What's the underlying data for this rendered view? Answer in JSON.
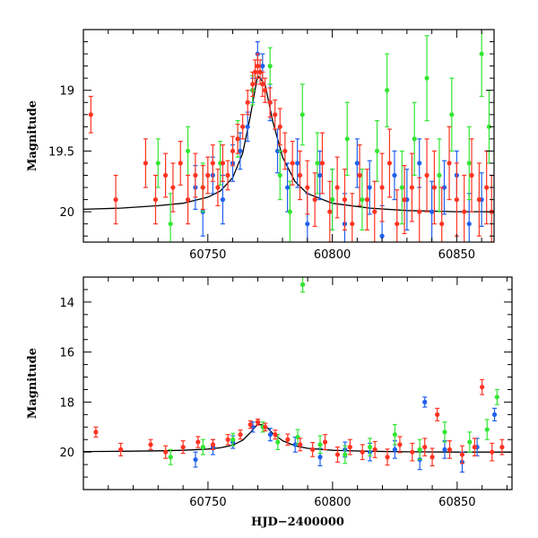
{
  "chart_data": [
    {
      "type": "scatter",
      "panel": "top",
      "title": "",
      "xlabel": "",
      "ylabel": "Magnitude",
      "xlim": [
        60700,
        60865
      ],
      "ylim": [
        20.25,
        18.5
      ],
      "y_inverted": true,
      "xticks": [
        60750,
        60800,
        60850
      ],
      "xtick_labels": [
        "60750",
        "60800",
        "60850"
      ],
      "yticks": [
        19,
        19.5,
        20
      ],
      "ytick_labels": [
        "19",
        "19.5",
        "20"
      ],
      "grid": false,
      "legend": "none",
      "model_curve": {
        "name": "",
        "color": "#000000",
        "x": [
          60700,
          60715,
          60730,
          60740,
          60750,
          60755,
          60760,
          60764,
          60767,
          60770,
          60773,
          60776,
          60780,
          60785,
          60790,
          60800,
          60815,
          60830,
          60850,
          60865
        ],
        "y": [
          19.98,
          19.97,
          19.95,
          19.93,
          19.88,
          19.83,
          19.72,
          19.52,
          19.22,
          18.88,
          18.95,
          19.25,
          19.55,
          19.75,
          19.85,
          19.93,
          19.97,
          19.99,
          20.0,
          20.0
        ]
      },
      "series": [
        {
          "name": "",
          "color": "#2060ee",
          "x": [
            60745,
            60748,
            60752,
            60756,
            60760,
            60763,
            60766,
            60768,
            60770,
            60772,
            60775,
            60778,
            60782,
            60786,
            60790,
            60795,
            60800,
            60805,
            60810,
            60815,
            60820,
            60825,
            60830,
            60835,
            60840,
            60845,
            60850,
            60855,
            60860
          ],
          "y": [
            19.8,
            20.0,
            19.7,
            19.9,
            19.6,
            19.5,
            19.3,
            19.0,
            18.7,
            18.8,
            19.1,
            19.5,
            19.8,
            19.6,
            20.1,
            19.7,
            19.9,
            20.1,
            19.6,
            19.8,
            20.2,
            19.7,
            19.9,
            19.6,
            20.0,
            19.8,
            19.7,
            20.1,
            19.9
          ],
          "err": [
            0.18,
            0.2,
            0.15,
            0.2,
            0.15,
            0.15,
            0.12,
            0.1,
            0.1,
            0.1,
            0.15,
            0.18,
            0.2,
            0.2,
            0.25,
            0.2,
            0.25,
            0.25,
            0.2,
            0.22,
            0.25,
            0.2,
            0.25,
            0.2,
            0.25,
            0.22,
            0.2,
            0.25,
            0.22
          ]
        },
        {
          "name": "",
          "color": "#33e633",
          "x": [
            60730,
            60735,
            60742,
            60748,
            60755,
            60762,
            60768,
            60775,
            60779,
            60783,
            60788,
            60794,
            60800,
            60806,
            60812,
            60818,
            60822,
            60828,
            60833,
            60838,
            60843,
            60848,
            60855,
            60860,
            60863
          ],
          "y": [
            19.6,
            20.1,
            19.5,
            19.8,
            19.6,
            19.4,
            19.0,
            18.8,
            19.7,
            20.0,
            19.2,
            19.6,
            19.9,
            19.4,
            19.9,
            19.5,
            19.0,
            19.8,
            19.4,
            18.9,
            19.7,
            19.2,
            19.6,
            18.7,
            19.3
          ],
          "err": [
            0.2,
            0.25,
            0.2,
            0.2,
            0.18,
            0.15,
            0.12,
            0.15,
            0.2,
            0.25,
            0.25,
            0.25,
            0.25,
            0.3,
            0.25,
            0.25,
            0.3,
            0.3,
            0.3,
            0.35,
            0.3,
            0.3,
            0.3,
            0.35,
            0.3
          ]
        },
        {
          "name": "",
          "color": "#ff3322",
          "x": [
            60703,
            60713,
            60725,
            60729,
            60733,
            60736,
            60739,
            60742,
            60745,
            60748,
            60750,
            60752,
            60754,
            60756,
            60758,
            60760,
            60762,
            60764,
            60766,
            60768,
            60769,
            60770,
            60771,
            60772,
            60773,
            60775,
            60777,
            60779,
            60781,
            60784,
            60787,
            60790,
            60793,
            60796,
            60799,
            60802,
            60805,
            60808,
            60811,
            60814,
            60817,
            60820,
            60823,
            60826,
            60829,
            60832,
            60835,
            60838,
            60841,
            60844,
            60847,
            60850,
            60853,
            60856,
            60859,
            60862,
            60864
          ],
          "y": [
            19.2,
            19.9,
            19.6,
            19.9,
            19.7,
            19.8,
            19.6,
            19.9,
            19.7,
            19.8,
            19.7,
            19.6,
            19.8,
            19.6,
            19.7,
            19.5,
            19.4,
            19.3,
            19.1,
            18.95,
            18.85,
            18.8,
            18.85,
            18.95,
            19.0,
            19.1,
            19.2,
            19.3,
            19.5,
            19.6,
            19.7,
            19.8,
            19.9,
            19.6,
            20.0,
            19.8,
            19.9,
            20.1,
            19.7,
            19.9,
            20.0,
            19.8,
            19.6,
            20.1,
            19.9,
            19.8,
            20.0,
            19.7,
            19.8,
            20.1,
            19.6,
            19.9,
            20.0,
            19.7,
            19.9,
            19.8,
            20.0
          ],
          "err": [
            0.15,
            0.2,
            0.2,
            0.2,
            0.18,
            0.2,
            0.18,
            0.2,
            0.18,
            0.18,
            0.15,
            0.15,
            0.15,
            0.15,
            0.12,
            0.12,
            0.12,
            0.1,
            0.1,
            0.1,
            0.1,
            0.1,
            0.1,
            0.1,
            0.1,
            0.12,
            0.12,
            0.15,
            0.15,
            0.18,
            0.2,
            0.22,
            0.22,
            0.25,
            0.25,
            0.25,
            0.25,
            0.25,
            0.25,
            0.25,
            0.25,
            0.28,
            0.28,
            0.28,
            0.28,
            0.28,
            0.28,
            0.3,
            0.3,
            0.3,
            0.3,
            0.3,
            0.3,
            0.3,
            0.3,
            0.3,
            0.3
          ]
        }
      ]
    },
    {
      "type": "scatter",
      "panel": "bottom",
      "title": "",
      "xlabel": "HJD−2400000",
      "ylabel": "Magnitude",
      "xlim": [
        60700,
        60872
      ],
      "ylim": [
        21.5,
        13
      ],
      "y_inverted": true,
      "xticks": [
        60750,
        60800,
        60850
      ],
      "xtick_labels": [
        "60750",
        "60800",
        "60850"
      ],
      "yticks": [
        14,
        16,
        18,
        20
      ],
      "ytick_labels": [
        "14",
        "16",
        "18",
        "20"
      ],
      "grid": false,
      "legend": "none",
      "model_curve": {
        "name": "",
        "color": "#000000",
        "x": [
          60700,
          60715,
          60730,
          60740,
          60750,
          60755,
          60760,
          60764,
          60767,
          60770,
          60773,
          60776,
          60780,
          60785,
          60790,
          60800,
          60815,
          60830,
          60850,
          60872
        ],
        "y": [
          19.98,
          19.97,
          19.95,
          19.93,
          19.88,
          19.83,
          19.72,
          19.52,
          19.22,
          18.88,
          18.95,
          19.25,
          19.55,
          19.75,
          19.85,
          19.93,
          19.97,
          19.99,
          20.0,
          20.0
        ]
      },
      "series": [
        {
          "name": "",
          "color": "#2060ee",
          "x": [
            60745,
            60752,
            60760,
            60768,
            60775,
            60785,
            60795,
            60805,
            60815,
            60825,
            60835,
            60837,
            60845,
            60852,
            60858,
            60865
          ],
          "y": [
            20.3,
            19.8,
            19.6,
            19.0,
            19.3,
            19.7,
            20.2,
            19.9,
            20.0,
            19.9,
            20.3,
            18.0,
            19.9,
            20.4,
            19.8,
            18.5
          ],
          "err": [
            0.3,
            0.3,
            0.25,
            0.2,
            0.25,
            0.3,
            0.35,
            0.3,
            0.35,
            0.35,
            0.4,
            0.2,
            0.35,
            0.4,
            0.35,
            0.25
          ]
        },
        {
          "name": "",
          "color": "#33e633",
          "x": [
            60735,
            60748,
            60760,
            60772,
            60778,
            60786,
            60788,
            60795,
            60805,
            60815,
            60825,
            60835,
            60845,
            60855,
            60862,
            60866
          ],
          "y": [
            20.2,
            19.8,
            19.5,
            19.0,
            19.6,
            19.4,
            13.3,
            19.7,
            20.1,
            19.8,
            19.3,
            19.9,
            19.2,
            19.6,
            19.1,
            17.8
          ],
          "err": [
            0.3,
            0.3,
            0.25,
            0.2,
            0.3,
            0.3,
            0.3,
            0.35,
            0.35,
            0.35,
            0.4,
            0.4,
            0.4,
            0.4,
            0.4,
            0.3
          ]
        },
        {
          "name": "",
          "color": "#ff3322",
          "x": [
            60705,
            60715,
            60727,
            60733,
            60740,
            60746,
            60752,
            60758,
            60763,
            60767,
            60770,
            60773,
            60777,
            60782,
            60787,
            60792,
            60797,
            60802,
            60807,
            60812,
            60817,
            60822,
            60827,
            60832,
            60837,
            60840,
            60842,
            60847,
            60852,
            60857,
            60860,
            60864,
            60868
          ],
          "y": [
            19.2,
            19.9,
            19.7,
            20.0,
            19.8,
            19.6,
            19.7,
            19.5,
            19.3,
            18.9,
            18.8,
            19.0,
            19.3,
            19.5,
            19.7,
            19.9,
            19.6,
            20.1,
            19.8,
            20.0,
            19.9,
            20.2,
            19.7,
            20.0,
            19.8,
            20.2,
            18.5,
            19.9,
            20.1,
            19.8,
            17.4,
            20.0,
            19.8
          ],
          "err": [
            0.2,
            0.25,
            0.2,
            0.25,
            0.25,
            0.22,
            0.2,
            0.2,
            0.18,
            0.15,
            0.12,
            0.15,
            0.18,
            0.22,
            0.25,
            0.28,
            0.3,
            0.3,
            0.3,
            0.3,
            0.32,
            0.32,
            0.32,
            0.35,
            0.35,
            0.35,
            0.25,
            0.35,
            0.35,
            0.35,
            0.3,
            0.35,
            0.3
          ]
        }
      ]
    }
  ]
}
